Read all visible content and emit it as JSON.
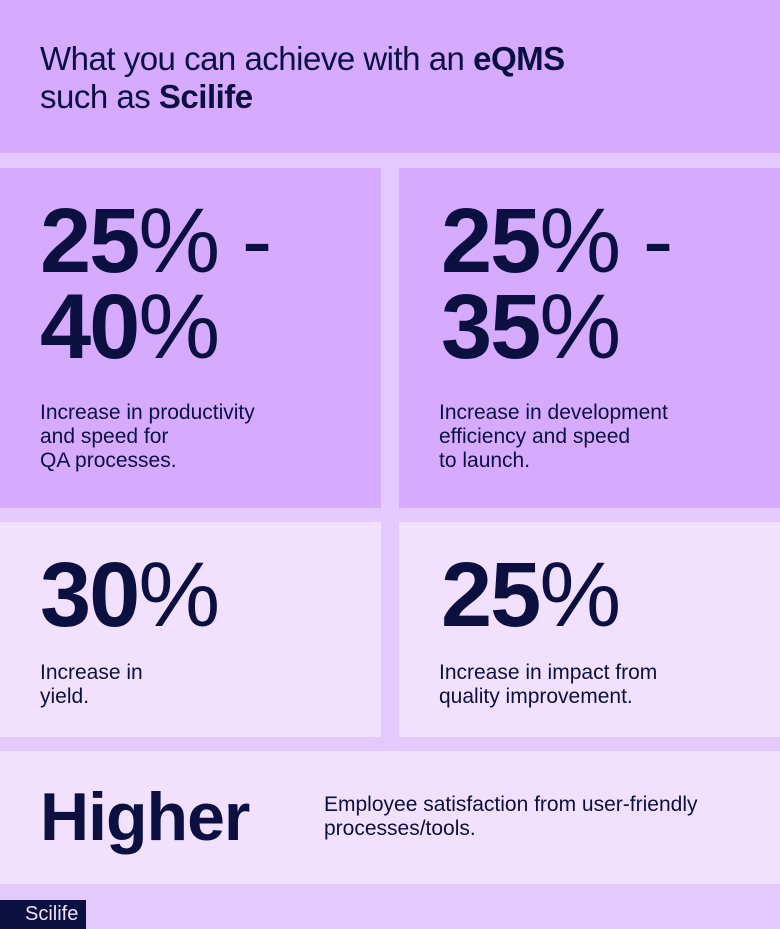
{
  "header": {
    "title_plain_1": "What you can achieve with an ",
    "title_bold_1": "eQMS",
    "title_plain_2": "such as ",
    "title_bold_2": "Scilife"
  },
  "stats": [
    {
      "line1_num": "25",
      "line1_rest": "% -",
      "line2_num": "40",
      "line2_rest": "%",
      "description": "Increase in productivity\nand speed for\nQA processes."
    },
    {
      "line1_num": "25",
      "line1_rest": "% -",
      "line2_num": "35",
      "line2_rest": "%",
      "description": "Increase in development\nefficiency and speed\nto launch."
    },
    {
      "line1_num": "30",
      "line1_rest": "%",
      "description": "Increase in\nyield."
    },
    {
      "line1_num": "25",
      "line1_rest": "%",
      "description": "Increase in impact from\nquality improvement."
    }
  ],
  "bottom": {
    "value": "Higher",
    "description": "Employee satisfaction from user-friendly\nprocesses/tools."
  },
  "logo": {
    "text": "Scilife"
  },
  "colors": {
    "primary_panel": "#d6aaff",
    "light_panel": "#f1e1fe",
    "background": "#e3c9fd",
    "text": "#0b1040"
  }
}
